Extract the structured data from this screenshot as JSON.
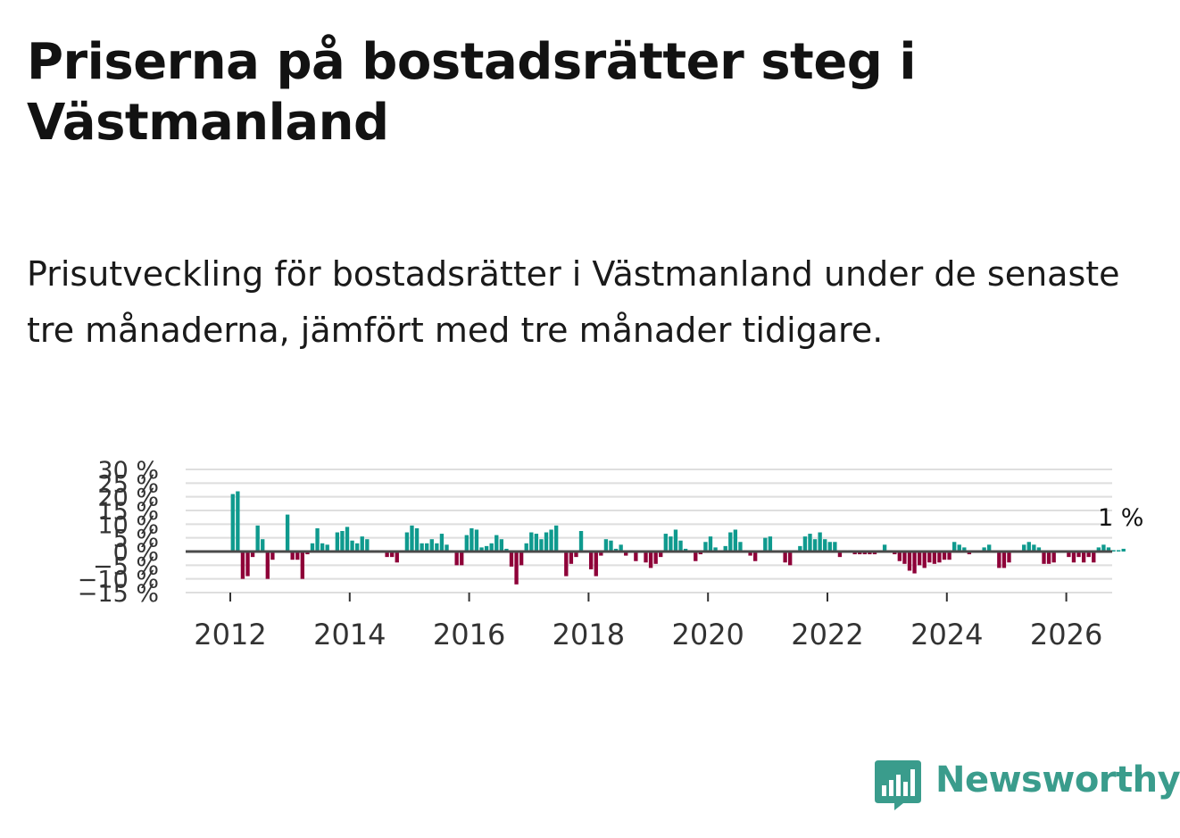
{
  "title": "Priserna på bostadsrätter steg i Västmanland",
  "subtitle": "Prisutveckling för bostadsrätter i Västmanland under de senaste tre månaderna, jämfört med tre månader tidigare.",
  "brand": "Newsworthy",
  "colors": {
    "positive": "#0f9a8e",
    "negative": "#8e0038",
    "brand": "#3a9c8c",
    "grid": "#dedede",
    "zero_line": "#4a4a4a"
  },
  "chart_data": {
    "type": "bar",
    "title": "Priserna på bostadsrätter steg i Västmanland",
    "ylabel": "",
    "xlabel": "",
    "ylim": [
      -15,
      30
    ],
    "y_ticks": [
      -15,
      -10,
      -5,
      0,
      5,
      10,
      15,
      20,
      25,
      30
    ],
    "y_tick_labels": [
      "−15 %",
      "−10 %",
      "−5 %",
      "0 %",
      "5 %",
      "10 %",
      "15 %",
      "20 %",
      "25 %",
      "30 %"
    ],
    "x_ticks": [
      2012,
      2014,
      2016,
      2018,
      2020,
      2022,
      2024,
      2026
    ],
    "x_tick_labels": [
      "2012",
      "2014",
      "2016",
      "2018",
      "2020",
      "2022",
      "2024",
      "2026"
    ],
    "x_start": 2012,
    "bars_per_year": 12,
    "last_value_label": "1 %",
    "values": [
      21,
      22,
      -10,
      -9,
      -2,
      9.5,
      4.5,
      -10,
      -3,
      0,
      0,
      13.5,
      -3,
      -3,
      -10,
      -1,
      3,
      8.5,
      3,
      2.5,
      0,
      7,
      7.5,
      9,
      4,
      3,
      5.5,
      4.5,
      0.5,
      0.5,
      0.5,
      -2,
      -2,
      -4,
      0.5,
      7,
      9.5,
      8.5,
      3,
      3,
      4.5,
      3,
      6.5,
      2.5,
      0.5,
      -5,
      -5,
      6,
      8.5,
      8,
      1.5,
      2,
      3,
      6,
      4.5,
      1,
      -5.5,
      -12,
      -5,
      3,
      7,
      6.5,
      4.5,
      7,
      8,
      9.5,
      0.5,
      -9,
      -4.5,
      -2,
      7.5,
      0.5,
      -6.5,
      -9,
      -1.5,
      4.5,
      4,
      1,
      2.5,
      -1.5,
      0.5,
      -3.5,
      0,
      -4,
      -6,
      -4.5,
      -2,
      6.5,
      5.5,
      8,
      4,
      1,
      0.5,
      -3.5,
      -1,
      3.5,
      5.5,
      1.5,
      0.5,
      2,
      7,
      8,
      3.5,
      0.5,
      -1.5,
      -3.5,
      0,
      5,
      5.5,
      0,
      0,
      -4,
      -5,
      0.5,
      2,
      5.5,
      6.5,
      4.5,
      7,
      4.5,
      3.5,
      3.5,
      -2,
      0.5,
      0.5,
      -1,
      -1,
      -1,
      -1,
      -1,
      0.5,
      2.5,
      0.5,
      -1,
      -3.5,
      -4.5,
      -7,
      -8,
      -5,
      -6,
      -4,
      -4.5,
      -4,
      -3,
      -3,
      3.5,
      2.5,
      1.5,
      -1,
      0,
      0,
      1.5,
      2.5,
      -0.5,
      -6,
      -6,
      -4,
      0.5,
      0,
      2.5,
      3.5,
      2.5,
      1.5,
      -4.5,
      -4.5,
      -4,
      0,
      0,
      -2,
      -4,
      -2,
      -4,
      -2,
      -4,
      1.5,
      2.5,
      1.5,
      0.5,
      0.5,
      1
    ]
  }
}
